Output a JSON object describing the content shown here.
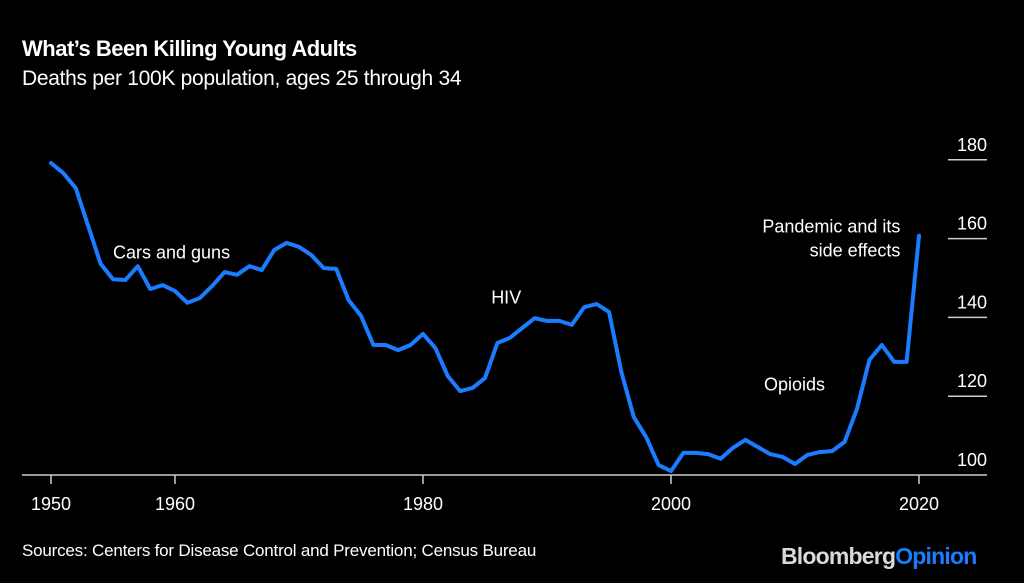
{
  "header": {
    "title": "What’s Been Killing Young Adults",
    "subtitle": "Deaths per 100K population, ages 25 through 34"
  },
  "footer": {
    "source": "Sources: Centers for Disease Control and Prevention; Census Bureau",
    "logo_primary": "Bloomberg",
    "logo_secondary": "Opinion"
  },
  "colors": {
    "background": "#000000",
    "line": "#1a7cff",
    "axis": "#cccccc",
    "text": "#ffffff"
  },
  "chart_data": {
    "type": "line",
    "title": "What’s Been Killing Young Adults",
    "subtitle": "Deaths per 100K population, ages 25 through 34",
    "xlabel": "",
    "ylabel": "",
    "xlim": [
      1948,
      2022
    ],
    "ylim": [
      100,
      180
    ],
    "x_ticks": [
      1950,
      1960,
      1980,
      2000,
      2020
    ],
    "y_ticks": [
      100,
      120,
      140,
      160,
      180
    ],
    "y_axis_position": "right",
    "grid": false,
    "x": [
      1950,
      1951,
      1952,
      1953,
      1954,
      1955,
      1956,
      1957,
      1958,
      1959,
      1960,
      1961,
      1962,
      1963,
      1964,
      1965,
      1966,
      1967,
      1968,
      1969,
      1970,
      1971,
      1972,
      1973,
      1974,
      1975,
      1976,
      1977,
      1978,
      1979,
      1980,
      1981,
      1982,
      1983,
      1984,
      1985,
      1986,
      1987,
      1988,
      1989,
      1990,
      1991,
      1992,
      1993,
      1994,
      1995,
      1996,
      1997,
      1998,
      1999,
      2000,
      2001,
      2002,
      2003,
      2004,
      2005,
      2006,
      2007,
      2008,
      2009,
      2010,
      2011,
      2012,
      2013,
      2014,
      2015,
      2016,
      2017,
      2018,
      2019,
      2020
    ],
    "series": [
      {
        "name": "Deaths per 100K, ages 25-34",
        "values": [
          179.2,
          176.6,
          172.8,
          163.2,
          153.6,
          149.7,
          149.5,
          153.0,
          147.2,
          148.2,
          146.7,
          143.7,
          144.9,
          148.0,
          151.5,
          150.8,
          153.0,
          152.0,
          157.1,
          158.9,
          157.9,
          155.8,
          152.5,
          152.3,
          144.4,
          140.4,
          133.0,
          133.0,
          131.7,
          133.0,
          135.8,
          132.2,
          125.1,
          121.3,
          122.1,
          124.6,
          133.5,
          134.8,
          137.3,
          139.8,
          139.1,
          139.1,
          138.1,
          142.6,
          143.4,
          141.4,
          126.1,
          114.7,
          109.6,
          102.5,
          101.0,
          105.6,
          105.6,
          105.3,
          104.1,
          106.9,
          108.9,
          107.1,
          105.3,
          104.6,
          102.8,
          105.1,
          105.8,
          106.1,
          108.4,
          116.8,
          129.2,
          133.0,
          128.7,
          128.7,
          160.7
        ]
      }
    ],
    "annotations": [
      {
        "lines": [
          "Cars and guns"
        ],
        "x": 1955,
        "y": 155,
        "align": "left"
      },
      {
        "lines": [
          "HIV"
        ],
        "x": 1985.5,
        "y": 143.5,
        "align": "left"
      },
      {
        "lines": [
          "Opioids"
        ],
        "x": 2007.5,
        "y": 121.5,
        "align": "left"
      },
      {
        "lines": [
          "Pandemic and its",
          "side effects"
        ],
        "x": 2018.5,
        "y": 161.5,
        "align": "right"
      }
    ]
  }
}
